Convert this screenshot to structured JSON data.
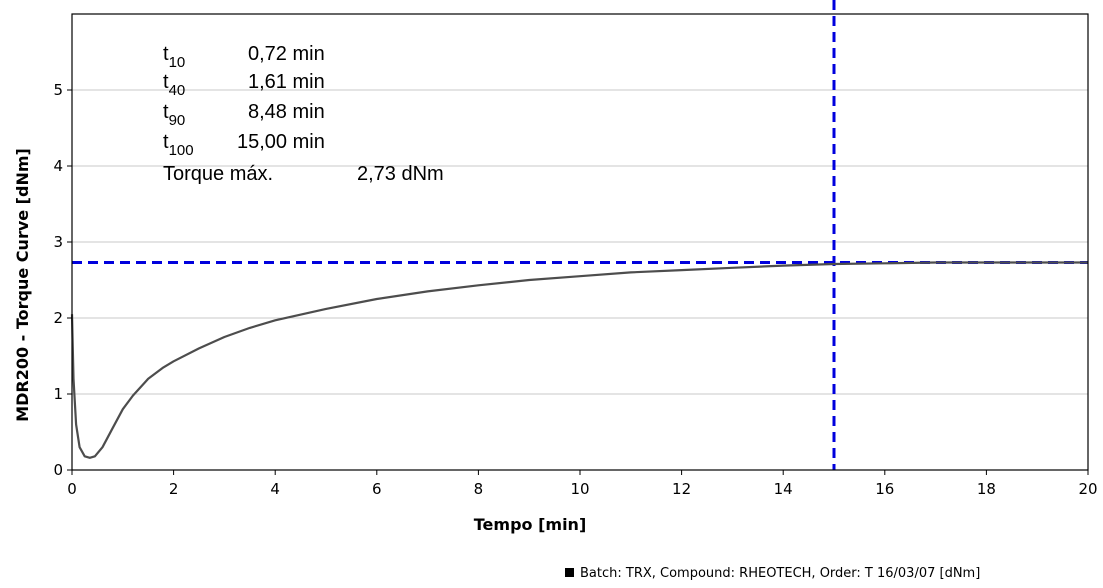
{
  "chart_data": {
    "type": "line",
    "xlabel": "Tempo  [min]",
    "ylabel": "MDR200 - Torque Curve [dNm]",
    "xlim": [
      0,
      20
    ],
    "ylim": [
      0,
      6
    ],
    "x_ticks": [
      "0",
      "2",
      "4",
      "6",
      "8",
      "10",
      "12",
      "14",
      "16",
      "18",
      "20"
    ],
    "y_ticks": [
      "0",
      "1",
      "2",
      "3",
      "4",
      "5"
    ],
    "grid": "horizontal",
    "series": [
      {
        "name": "Batch: TRX, Compound: RHEOTECH, Order: T 16/03/07 [dNm]",
        "color": "#4d4d4d",
        "x": [
          0,
          0.03,
          0.08,
          0.15,
          0.25,
          0.35,
          0.45,
          0.6,
          0.8,
          1.0,
          1.2,
          1.5,
          1.8,
          2.0,
          2.5,
          3.0,
          3.5,
          4.0,
          5.0,
          6.0,
          7.0,
          8.0,
          9.0,
          10.0,
          11.0,
          12.0,
          13.0,
          14.0,
          15.0,
          16.0,
          17.0,
          18.0,
          19.0,
          20.0
        ],
        "y": [
          2.05,
          1.2,
          0.6,
          0.3,
          0.18,
          0.16,
          0.18,
          0.3,
          0.55,
          0.8,
          0.98,
          1.2,
          1.35,
          1.43,
          1.6,
          1.75,
          1.87,
          1.97,
          2.12,
          2.25,
          2.35,
          2.43,
          2.5,
          2.55,
          2.6,
          2.63,
          2.66,
          2.69,
          2.71,
          2.72,
          2.73,
          2.73,
          2.73,
          2.73
        ]
      }
    ],
    "reference_lines": [
      {
        "orientation": "vertical",
        "value": 15.0,
        "color": "#0000dd",
        "style": "dashed"
      },
      {
        "orientation": "horizontal",
        "value": 2.73,
        "color": "#0000dd",
        "style": "dashed"
      }
    ],
    "annotations": [
      {
        "label": "t",
        "sub": "10",
        "value": "0,72 min"
      },
      {
        "label": "t",
        "sub": "40",
        "value": "1,61 min"
      },
      {
        "label": "t",
        "sub": "90",
        "value": "8,48 min"
      },
      {
        "label": "t",
        "sub": "100",
        "value": "15,00 min"
      },
      {
        "label": "Torque máx.",
        "sub": "",
        "value": "2,73 dNm"
      }
    ],
    "legend": "Batch: TRX, Compound: RHEOTECH, Order: T 16/03/07 [dNm]",
    "legend_position": "bottom-right"
  }
}
